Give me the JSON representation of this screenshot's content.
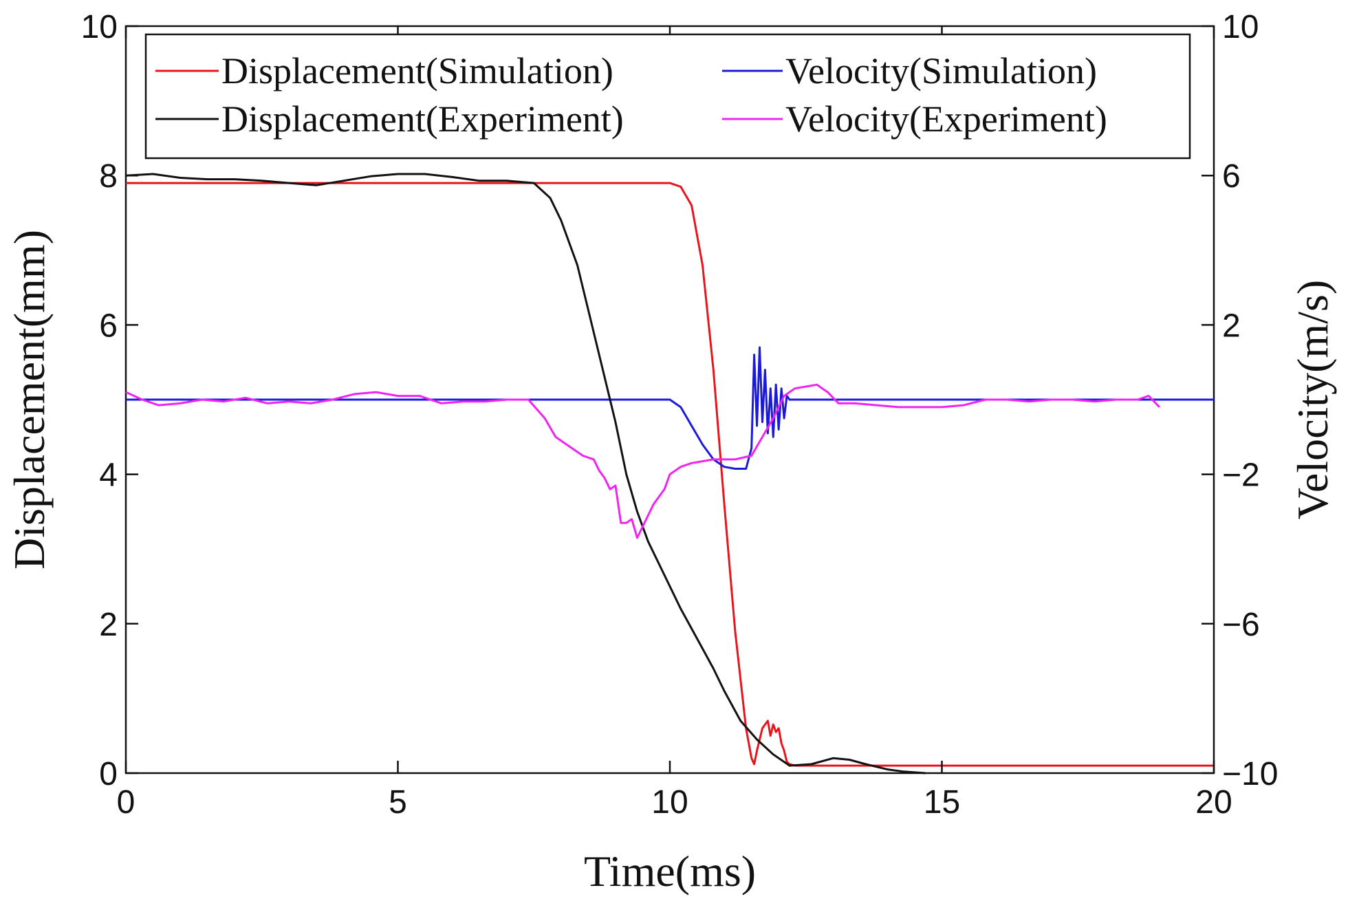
{
  "chart_data": {
    "type": "line",
    "xlabel": "Time(ms)",
    "ylabel": "Displacement(mm)",
    "y2label": "Velocity(m/s)",
    "xlim": [
      0,
      20
    ],
    "ylim": [
      0,
      10
    ],
    "y2lim": [
      -10,
      10
    ],
    "xticks": [
      0,
      5,
      10,
      15,
      20
    ],
    "yticks": [
      0,
      2,
      4,
      6,
      8,
      10
    ],
    "y2ticks": [
      -10,
      -6,
      -2,
      2,
      6,
      10
    ],
    "xtick_labels": [
      "0",
      "5",
      "10",
      "15",
      "20"
    ],
    "ytick_labels": [
      "0",
      "2",
      "4",
      "6",
      "8",
      "10"
    ],
    "y2tick_labels": [
      "−10",
      "−6",
      "−2",
      "2",
      "6",
      "10"
    ],
    "grid": false,
    "legend_position": "top",
    "series": [
      {
        "name": "Displacement(Simulation)",
        "axis": "left",
        "color": "#e8141c",
        "x": [
          0,
          10.0,
          10.2,
          10.4,
          10.6,
          10.8,
          11.0,
          11.2,
          11.4,
          11.5,
          11.55,
          11.6,
          11.7,
          11.8,
          11.85,
          11.9,
          11.95,
          12.0,
          12.05,
          12.1,
          12.15,
          12.2,
          12.3,
          20
        ],
        "values": [
          7.9,
          7.9,
          7.85,
          7.6,
          6.8,
          5.4,
          3.6,
          1.9,
          0.6,
          0.2,
          0.12,
          0.3,
          0.6,
          0.7,
          0.5,
          0.65,
          0.55,
          0.6,
          0.4,
          0.3,
          0.15,
          0.12,
          0.1,
          0.1
        ]
      },
      {
        "name": "Velocity(Simulation)",
        "axis": "right",
        "color": "#1a1ad8",
        "x": [
          0,
          10.0,
          10.2,
          10.4,
          10.6,
          10.8,
          11.0,
          11.2,
          11.4,
          11.5,
          11.55,
          11.6,
          11.65,
          11.7,
          11.75,
          11.8,
          11.85,
          11.9,
          11.95,
          12.0,
          12.05,
          12.1,
          12.15,
          12.2,
          20
        ],
        "values": [
          0,
          0,
          -0.2,
          -0.7,
          -1.2,
          -1.6,
          -1.8,
          -1.85,
          -1.85,
          -1.3,
          1.2,
          -0.7,
          1.4,
          -0.6,
          0.8,
          -0.9,
          0.3,
          -1.0,
          0.4,
          -0.8,
          0.3,
          -0.5,
          0.1,
          0,
          0
        ]
      },
      {
        "name": "Displacement(Experiment)",
        "axis": "left",
        "color": "#111111",
        "x": [
          0,
          0.5,
          1.0,
          1.5,
          2.0,
          2.5,
          3.0,
          3.5,
          4.0,
          4.5,
          5.0,
          5.5,
          6.0,
          6.5,
          7.0,
          7.5,
          7.8,
          8.0,
          8.3,
          8.6,
          8.8,
          9.0,
          9.2,
          9.4,
          9.6,
          9.8,
          10.0,
          10.2,
          10.5,
          10.8,
          11.0,
          11.3,
          11.6,
          11.9,
          12.2,
          12.6,
          13.0,
          13.3,
          13.6,
          14.0,
          14.3,
          14.7
        ],
        "values": [
          8.0,
          8.02,
          7.97,
          7.95,
          7.95,
          7.93,
          7.9,
          7.87,
          7.93,
          7.99,
          8.02,
          8.02,
          7.98,
          7.93,
          7.93,
          7.9,
          7.7,
          7.4,
          6.8,
          5.9,
          5.3,
          4.7,
          4.0,
          3.5,
          3.1,
          2.8,
          2.5,
          2.2,
          1.8,
          1.4,
          1.1,
          0.7,
          0.45,
          0.25,
          0.1,
          0.12,
          0.2,
          0.18,
          0.12,
          0.05,
          0.02,
          0.0
        ]
      },
      {
        "name": "Velocity(Experiment)",
        "axis": "right",
        "color": "#f024f0",
        "x": [
          0,
          0.3,
          0.6,
          1.0,
          1.4,
          1.8,
          2.2,
          2.6,
          3.0,
          3.4,
          3.8,
          4.2,
          4.6,
          5.0,
          5.4,
          5.8,
          6.2,
          6.6,
          7.0,
          7.4,
          7.7,
          7.9,
          8.0,
          8.2,
          8.4,
          8.6,
          8.7,
          8.8,
          8.9,
          9.0,
          9.1,
          9.2,
          9.3,
          9.4,
          9.5,
          9.7,
          9.9,
          10.0,
          10.2,
          10.4,
          10.6,
          10.8,
          11.0,
          11.2,
          11.5,
          11.7,
          11.9,
          12.1,
          12.3,
          12.5,
          12.7,
          12.9,
          13.1,
          13.4,
          13.8,
          14.2,
          14.6,
          15.0,
          15.4,
          15.8,
          16.2,
          16.6,
          17.0,
          17.4,
          17.8,
          18.2,
          18.6,
          18.8,
          19.0
        ],
        "values": [
          0.2,
          0.0,
          -0.15,
          -0.1,
          0.0,
          -0.05,
          0.05,
          -0.1,
          -0.05,
          -0.1,
          0.0,
          0.15,
          0.2,
          0.1,
          0.1,
          -0.1,
          -0.05,
          -0.05,
          0.0,
          0.0,
          -0.5,
          -1.0,
          -1.1,
          -1.3,
          -1.5,
          -1.6,
          -1.9,
          -2.1,
          -2.4,
          -2.3,
          -3.3,
          -3.3,
          -3.2,
          -3.7,
          -3.4,
          -2.8,
          -2.4,
          -2.0,
          -1.8,
          -1.7,
          -1.65,
          -1.6,
          -1.6,
          -1.6,
          -1.5,
          -1.0,
          -0.5,
          0.1,
          0.3,
          0.35,
          0.4,
          0.2,
          -0.1,
          -0.1,
          -0.15,
          -0.2,
          -0.2,
          -0.2,
          -0.15,
          0.0,
          0.0,
          -0.05,
          0.0,
          0.0,
          -0.05,
          0.0,
          0.0,
          0.1,
          -0.2
        ]
      }
    ]
  }
}
